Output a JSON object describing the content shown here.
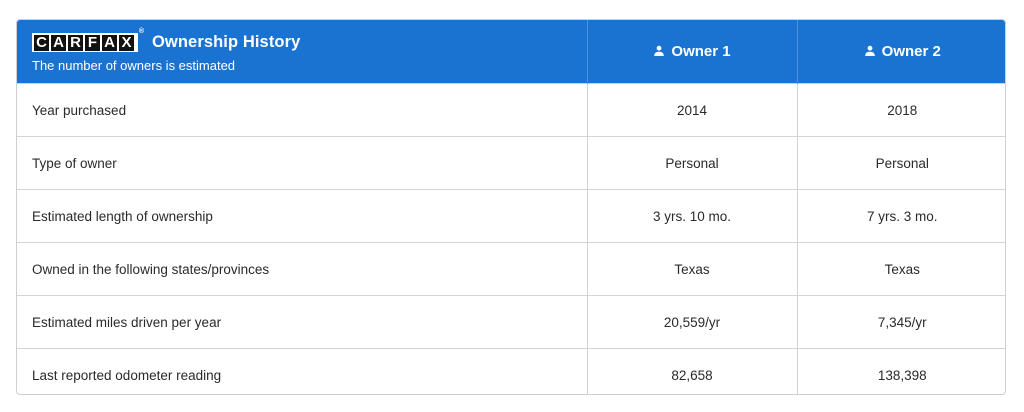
{
  "header": {
    "logo_letters": [
      "C",
      "A",
      "R",
      "F",
      "A",
      "X"
    ],
    "logo_reg": "®",
    "title": "Ownership History",
    "subtitle": "The number of owners is estimated",
    "owners": [
      {
        "label": "Owner 1",
        "icon": "person-icon"
      },
      {
        "label": "Owner 2",
        "icon": "person-icon"
      }
    ]
  },
  "rows": [
    {
      "label": "Year purchased",
      "values": [
        "2014",
        "2018"
      ]
    },
    {
      "label": "Type of owner",
      "values": [
        "Personal",
        "Personal"
      ]
    },
    {
      "label": "Estimated length of ownership",
      "values": [
        "3 yrs. 10 mo.",
        "7 yrs. 3 mo."
      ]
    },
    {
      "label": "Owned in the following states/provinces",
      "values": [
        "Texas",
        "Texas"
      ]
    },
    {
      "label": "Estimated miles driven per year",
      "values": [
        "20,559/yr",
        "7,345/yr"
      ]
    },
    {
      "label": "Last reported odometer reading",
      "values": [
        "82,658",
        "138,398"
      ]
    }
  ],
  "colors": {
    "header_bg": "#1a73d1",
    "header_text": "#ffffff",
    "row_border": "#d3d3d3"
  }
}
